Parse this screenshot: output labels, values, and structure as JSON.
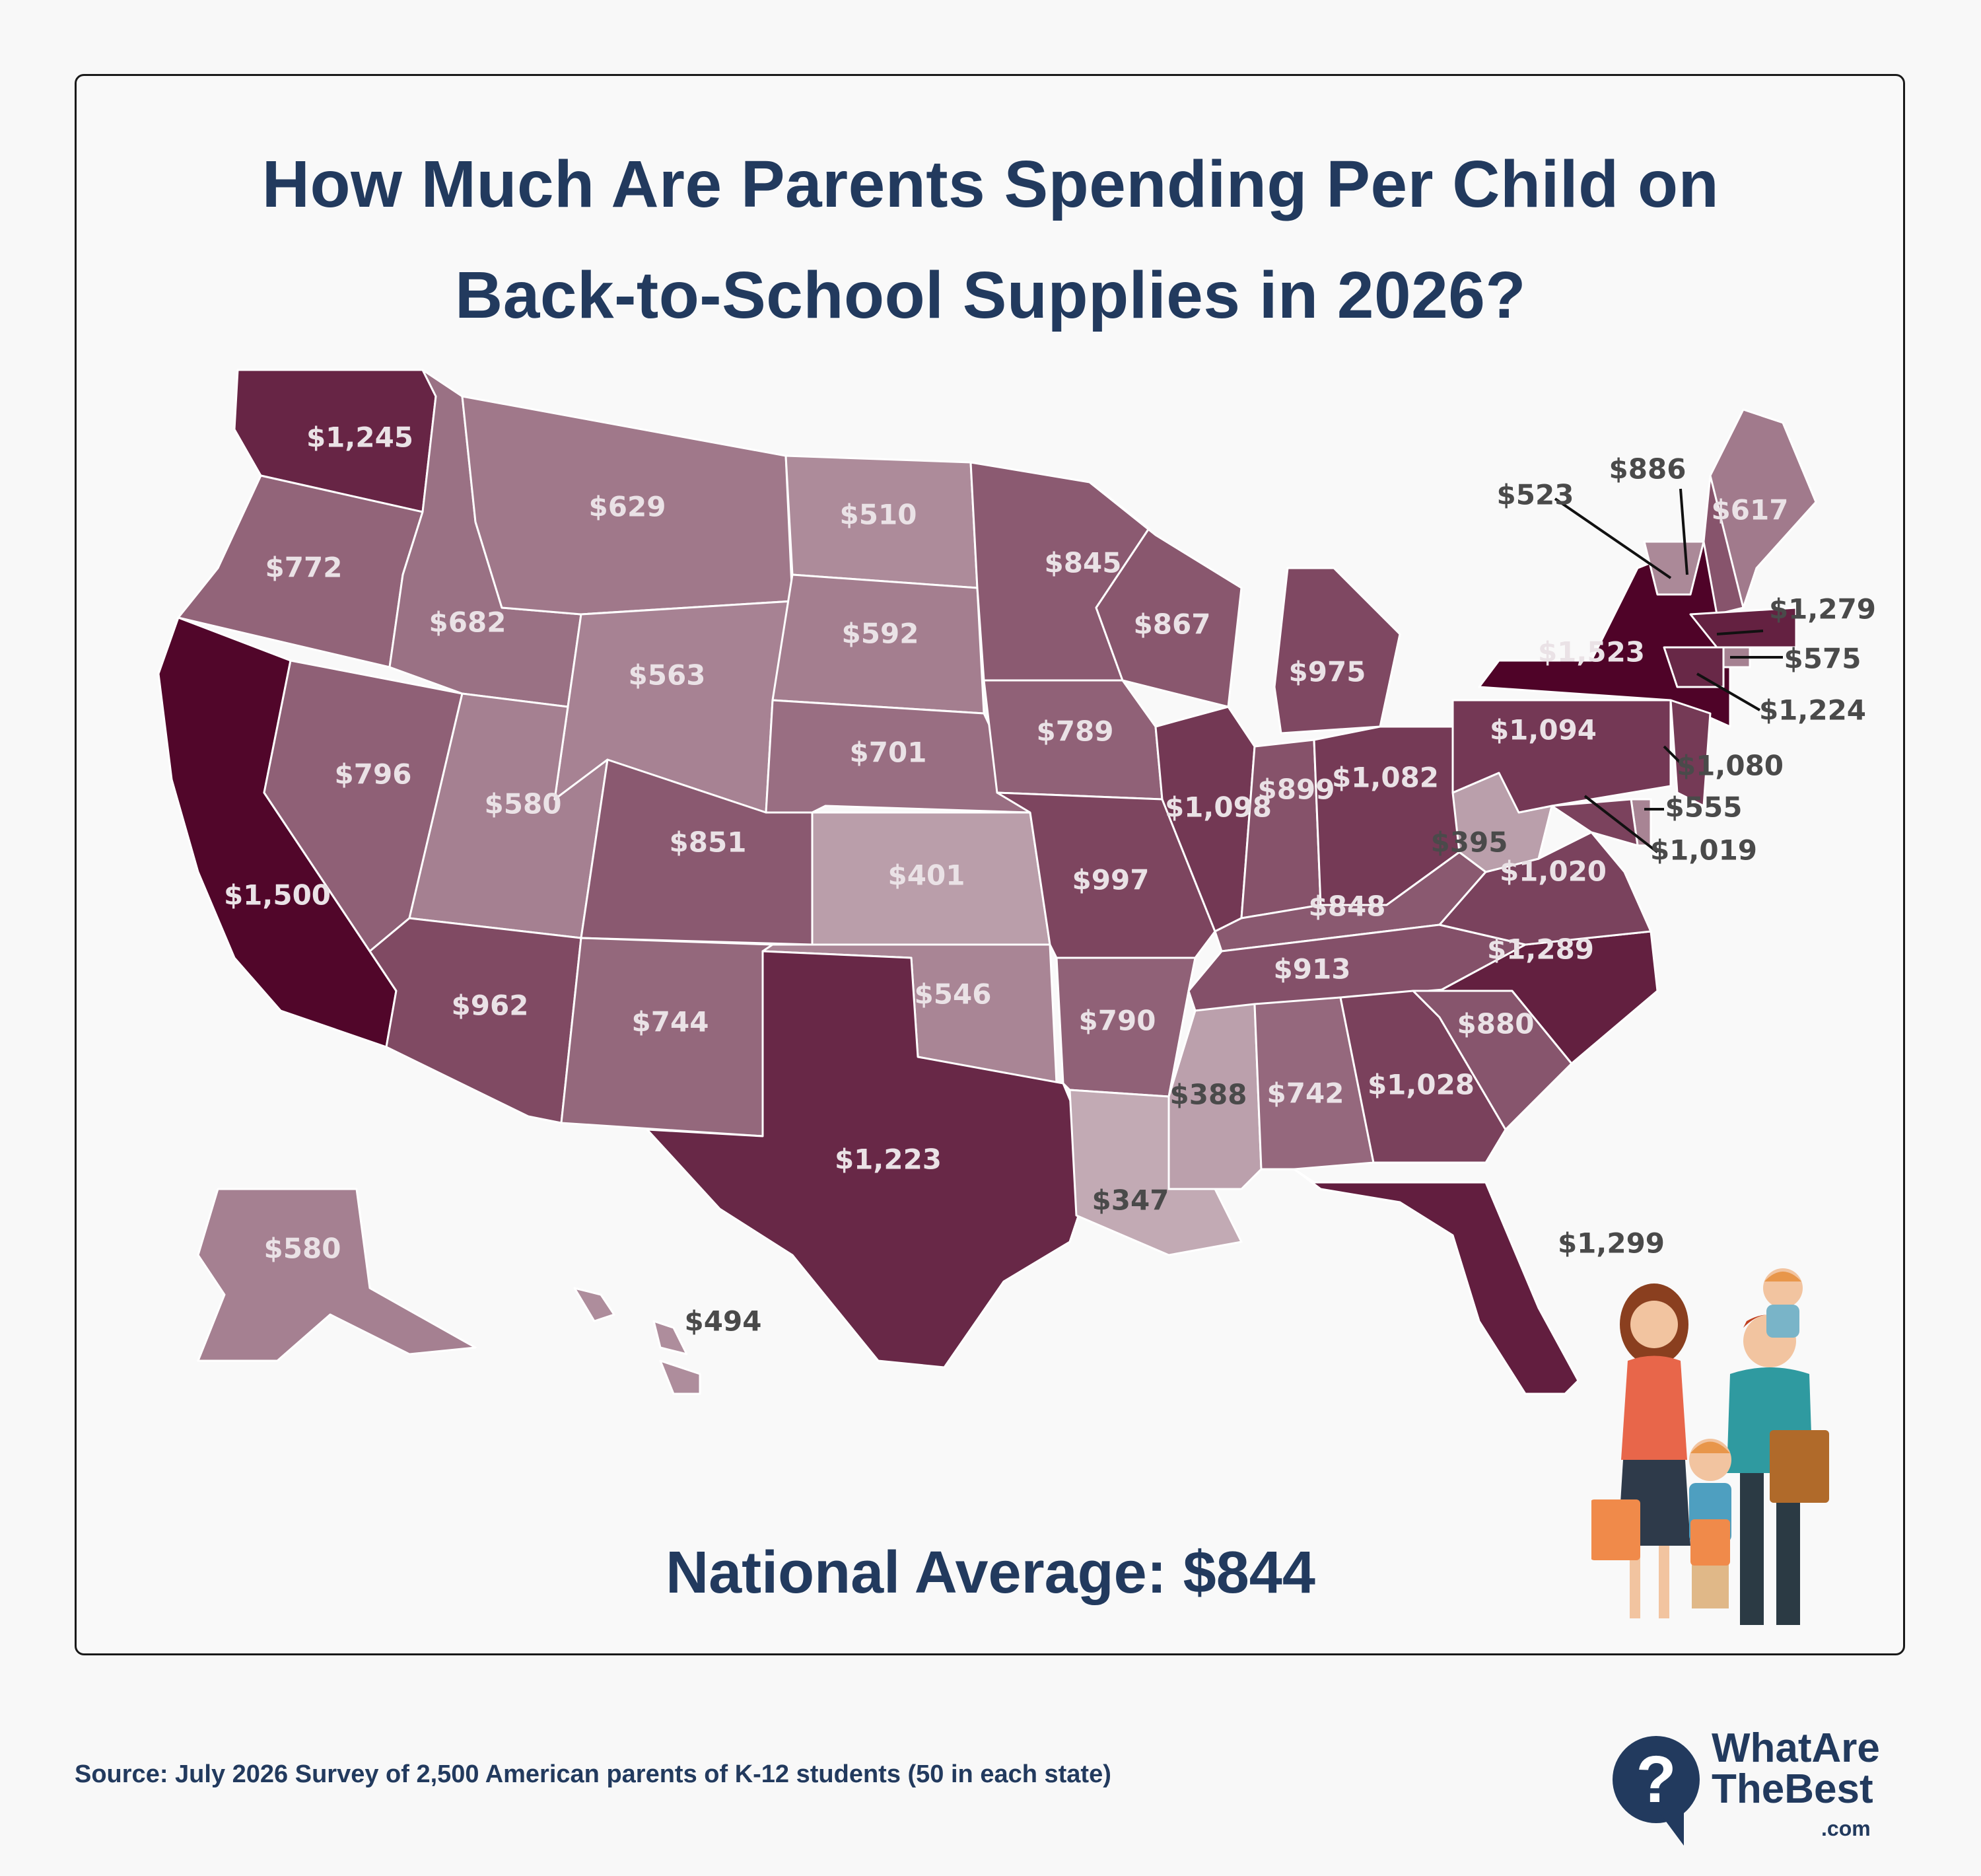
{
  "title": {
    "line1": "How Much Are Parents Spending Per Child on",
    "line2": "Back-to-School Supplies in 2026?"
  },
  "national_average": "National Average: $844",
  "source": "Source: July 2026 Survey of 2,500 American parents of K-12 students (50 in each state)",
  "logo": {
    "line1": "WhatAre",
    "line2": "TheBest",
    "line3": ".com",
    "mark": "?"
  },
  "colors": {
    "brand_navy": "#223a5e",
    "scale_low": "#c2aab4",
    "scale_high": "#4f0328",
    "label_light": "#eae2e6",
    "label_dark": "#4a4a4a"
  },
  "states": [
    {
      "id": "WA",
      "value": "$1,245",
      "amount": 1245
    },
    {
      "id": "OR",
      "value": "$772",
      "amount": 772
    },
    {
      "id": "CA",
      "value": "$1,500",
      "amount": 1500
    },
    {
      "id": "NV",
      "value": "$796",
      "amount": 796
    },
    {
      "id": "ID",
      "value": "$682",
      "amount": 682
    },
    {
      "id": "MT",
      "value": "$629",
      "amount": 629
    },
    {
      "id": "WY",
      "value": "$563",
      "amount": 563
    },
    {
      "id": "UT",
      "value": "$580",
      "amount": 580
    },
    {
      "id": "AZ",
      "value": "$962",
      "amount": 962
    },
    {
      "id": "CO",
      "value": "$851",
      "amount": 851
    },
    {
      "id": "NM",
      "value": "$744",
      "amount": 744
    },
    {
      "id": "ND",
      "value": "$510",
      "amount": 510
    },
    {
      "id": "SD",
      "value": "$592",
      "amount": 592
    },
    {
      "id": "NE",
      "value": "$701",
      "amount": 701
    },
    {
      "id": "KS",
      "value": "$401",
      "amount": 401
    },
    {
      "id": "OK",
      "value": "$546",
      "amount": 546
    },
    {
      "id": "TX",
      "value": "$1,223",
      "amount": 1223
    },
    {
      "id": "MN",
      "value": "$845",
      "amount": 845
    },
    {
      "id": "IA",
      "value": "$789",
      "amount": 789
    },
    {
      "id": "MO",
      "value": "$997",
      "amount": 997
    },
    {
      "id": "AR",
      "value": "$790",
      "amount": 790
    },
    {
      "id": "LA",
      "value": "$347",
      "amount": 347
    },
    {
      "id": "WI",
      "value": "$867",
      "amount": 867
    },
    {
      "id": "IL",
      "value": "$1,098",
      "amount": 1098
    },
    {
      "id": "MI",
      "value": "$975",
      "amount": 975
    },
    {
      "id": "IN",
      "value": "$899",
      "amount": 899
    },
    {
      "id": "OH",
      "value": "$1,082",
      "amount": 1082
    },
    {
      "id": "KY",
      "value": "$848",
      "amount": 848
    },
    {
      "id": "TN",
      "value": "$913",
      "amount": 913
    },
    {
      "id": "MS",
      "value": "$388",
      "amount": 388
    },
    {
      "id": "AL",
      "value": "$742",
      "amount": 742
    },
    {
      "id": "GA",
      "value": "$1,028",
      "amount": 1028
    },
    {
      "id": "FL",
      "value": "$1,299",
      "amount": 1299
    },
    {
      "id": "SC",
      "value": "$880",
      "amount": 880
    },
    {
      "id": "NC",
      "value": "$1,289",
      "amount": 1289
    },
    {
      "id": "VA",
      "value": "$1,020",
      "amount": 1020
    },
    {
      "id": "WV",
      "value": "$395",
      "amount": 395
    },
    {
      "id": "PA",
      "value": "$1,094",
      "amount": 1094
    },
    {
      "id": "NY",
      "value": "$1,523",
      "amount": 1523
    },
    {
      "id": "VT",
      "value": "$523",
      "amount": 523
    },
    {
      "id": "NH",
      "value": "$886",
      "amount": 886
    },
    {
      "id": "ME",
      "value": "$617",
      "amount": 617
    },
    {
      "id": "MA",
      "value": "$1,279",
      "amount": 1279
    },
    {
      "id": "RI",
      "value": "$575",
      "amount": 575
    },
    {
      "id": "CT",
      "value": "$1,224",
      "amount": 1224
    },
    {
      "id": "NJ",
      "value": "$1,080",
      "amount": 1080
    },
    {
      "id": "DE",
      "value": "$555",
      "amount": 555
    },
    {
      "id": "MD",
      "value": "$1,019",
      "amount": 1019
    },
    {
      "id": "AK",
      "value": "$580",
      "amount": 580
    },
    {
      "id": "HI",
      "value": "$494",
      "amount": 494
    }
  ]
}
